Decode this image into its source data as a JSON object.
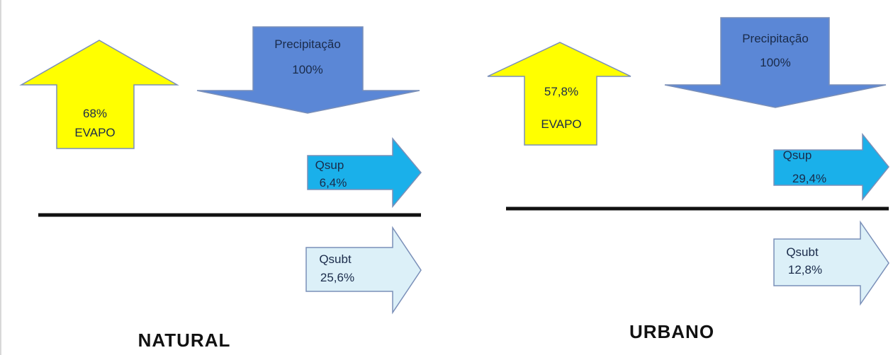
{
  "scenarios": [
    {
      "title": "NATURAL",
      "evapo": {
        "percent": "68%",
        "label": "EVAPO"
      },
      "precipitation": {
        "label": "Precipitação",
        "percent": "100%"
      },
      "surface_runoff": {
        "label": "Qsup",
        "percent": "6,4%"
      },
      "subsurface_flow": {
        "label": "Qsubt",
        "percent": "25,6%"
      }
    },
    {
      "title": "URBANO",
      "evapo": {
        "percent": "57,8%",
        "label": "EVAPO"
      },
      "precipitation": {
        "label": "Precipitação",
        "percent": "100%"
      },
      "surface_runoff": {
        "label": "Qsup",
        "percent": "29,4%"
      },
      "subsurface_flow": {
        "label": "Qsubt",
        "percent": "12,8%"
      }
    }
  ],
  "colors": {
    "evapo_fill": "#ffff00",
    "precipitation_fill": "#5b87d6",
    "surface_runoff_fill": "#1ab0ea",
    "subsurface_fill": "#dcf0f8",
    "ground_line": "#111111",
    "arrow_stroke": "#7a8fb8",
    "text": "#1a2b4a"
  }
}
